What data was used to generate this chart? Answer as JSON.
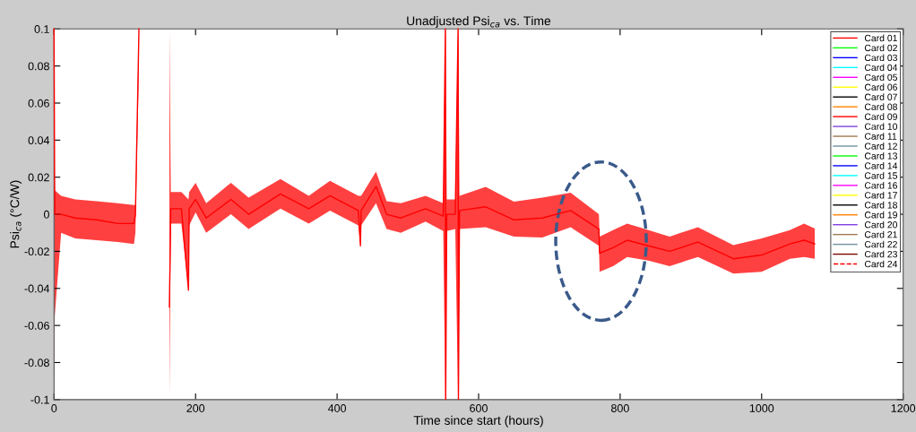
{
  "chart_data": {
    "type": "line",
    "title": "Unadjusted Psi$_{ca}$ vs. Time",
    "xlabel": "Time since start (hours)",
    "ylabel": "Psi$_{ca}$ (°C/W)",
    "x": [
      0,
      1,
      10,
      30,
      60,
      90,
      113,
      115,
      120,
      121,
      162,
      163,
      165,
      180,
      190,
      191,
      200,
      215,
      250,
      275,
      320,
      360,
      390,
      430,
      433,
      434,
      455,
      470,
      490,
      525,
      550,
      553,
      553.5,
      555,
      567,
      571,
      571.5,
      573,
      610,
      650,
      690,
      730,
      770,
      771,
      790,
      810,
      840,
      870,
      910,
      960,
      1000,
      1040,
      1060,
      1075
    ],
    "series": [
      {
        "name": "Card 01",
        "color": "#ff0000",
        "values": [
          0.1,
          0,
          0.0,
          -0.002,
          -0.003,
          -0.005,
          -0.005,
          0.0,
          0.1,
          null,
          null,
          -0.05,
          0.003,
          0.003,
          -0.041,
          0.003,
          0.008,
          -0.002,
          0.008,
          0.0,
          0.011,
          0.003,
          0.01,
          0.002,
          -0.017,
          0.002,
          0.015,
          0.0,
          -0.002,
          0.003,
          -0.001,
          0.1,
          -0.1,
          0.0,
          0.0,
          0.1,
          -0.1,
          0.002,
          0.004,
          -0.003,
          -0.002,
          0.002,
          -0.008,
          -0.021,
          -0.018,
          -0.014,
          -0.017,
          -0.02,
          -0.015,
          -0.024,
          -0.022,
          -0.016,
          -0.014,
          -0.016
        ],
        "lower": [
          -0.1,
          -0.055,
          -0.01,
          -0.013,
          -0.014,
          -0.015,
          -0.016,
          -0.01,
          0.08,
          null,
          null,
          -0.1,
          -0.005,
          -0.005,
          -0.041,
          -0.006,
          0.001,
          -0.01,
          0.0,
          -0.008,
          0.003,
          -0.005,
          0.002,
          -0.006,
          -0.017,
          -0.006,
          0.006,
          -0.008,
          -0.01,
          -0.004,
          -0.009,
          -0.1,
          -0.1,
          -0.009,
          -0.008,
          -0.1,
          -0.1,
          -0.008,
          -0.007,
          -0.012,
          -0.0125,
          -0.007,
          -0.017,
          -0.031,
          -0.028,
          -0.023,
          -0.025,
          -0.028,
          -0.023,
          -0.032,
          -0.031,
          -0.024,
          -0.023,
          -0.024
        ],
        "upper": [
          0.1,
          0.013,
          0.01,
          0.008,
          0.007,
          0.006,
          0.005,
          0.005,
          0.1,
          null,
          null,
          0.1,
          0.012,
          0.012,
          0.008,
          0.012,
          0.017,
          0.006,
          0.017,
          0.009,
          0.019,
          0.01,
          0.018,
          0.01,
          0.01,
          0.01,
          0.023,
          0.007,
          0.006,
          0.01,
          0.006,
          0.1,
          0.1,
          0.008,
          0.008,
          0.1,
          0.1,
          0.01,
          0.0148,
          0.0068,
          0.009,
          0.0116,
          0.0,
          -0.012,
          -0.0085,
          -0.005,
          -0.0085,
          -0.012,
          -0.007,
          -0.0166,
          -0.013,
          -0.0085,
          -0.005,
          -0.0077
        ]
      },
      {
        "name": "Card 02",
        "color": "#00ff00",
        "values": [
          null,
          null,
          null,
          null,
          null,
          null,
          null,
          null,
          null,
          null,
          null,
          null,
          null,
          null,
          null,
          null,
          null,
          null,
          null,
          null,
          null,
          null,
          null,
          null,
          null,
          null,
          null,
          null,
          null,
          null,
          null,
          null,
          null,
          null,
          null,
          null,
          null,
          null,
          null,
          null,
          null,
          null,
          null,
          null,
          null,
          null,
          null,
          null,
          null,
          null,
          null,
          null,
          null,
          null
        ]
      },
      {
        "name": "Card 03",
        "color": "#0000ff",
        "values": [
          null,
          null,
          null,
          null,
          null,
          null,
          null,
          null,
          null,
          null,
          null,
          null,
          null,
          null,
          null,
          null,
          null,
          null,
          null,
          null,
          null,
          null,
          null,
          null,
          null,
          null,
          null,
          null,
          null,
          null,
          null,
          null,
          null,
          null,
          null,
          null,
          null,
          null,
          null,
          null,
          null,
          null,
          null,
          null,
          null,
          null,
          null,
          null,
          null,
          null,
          null,
          null,
          null,
          null
        ]
      },
      {
        "name": "Card 04",
        "color": "#00ffff",
        "values": [
          null,
          null,
          null,
          null,
          null,
          null,
          null,
          null,
          null,
          null,
          null,
          null,
          null,
          null,
          null,
          null,
          null,
          null,
          null,
          null,
          null,
          null,
          null,
          null,
          null,
          null,
          null,
          null,
          null,
          null,
          null,
          null,
          null,
          null,
          null,
          null,
          null,
          null,
          null,
          null,
          null,
          null,
          null,
          null,
          null,
          null,
          null,
          null,
          null,
          null,
          null,
          null,
          null,
          null
        ]
      },
      {
        "name": "Card 05",
        "color": "#ff00ff",
        "values": [
          null,
          null,
          null,
          null,
          null,
          null,
          null,
          null,
          null,
          null,
          null,
          null,
          null,
          null,
          null,
          null,
          null,
          null,
          null,
          null,
          null,
          null,
          null,
          null,
          null,
          null,
          null,
          null,
          null,
          null,
          null,
          null,
          null,
          null,
          null,
          null,
          null,
          null,
          null,
          null,
          null,
          null,
          null,
          null,
          null,
          null,
          null,
          null,
          null,
          null,
          null,
          null,
          null,
          null
        ]
      },
      {
        "name": "Card 06",
        "color": "#ffff00",
        "values": [
          null,
          null,
          null,
          null,
          null,
          null,
          null,
          null,
          null,
          null,
          null,
          null,
          null,
          null,
          null,
          null,
          null,
          null,
          null,
          null,
          null,
          null,
          null,
          null,
          null,
          null,
          null,
          null,
          null,
          null,
          null,
          null,
          null,
          null,
          null,
          null,
          null,
          null,
          null,
          null,
          null,
          null,
          null,
          null,
          null,
          null,
          null,
          null,
          null,
          null,
          null,
          null,
          null,
          null
        ]
      },
      {
        "name": "Card 07",
        "color": "#000000",
        "values": [
          null,
          null,
          null,
          null,
          null,
          null,
          null,
          null,
          null,
          null,
          null,
          null,
          null,
          null,
          null,
          null,
          null,
          null,
          null,
          null,
          null,
          null,
          null,
          null,
          null,
          null,
          null,
          null,
          null,
          null,
          null,
          null,
          null,
          null,
          null,
          null,
          null,
          null,
          null,
          null,
          null,
          null,
          null,
          null,
          null,
          null,
          null,
          null,
          null,
          null,
          null,
          null,
          null,
          null
        ]
      },
      {
        "name": "Card 08",
        "color": "#ff8000",
        "values": [
          null,
          null,
          null,
          null,
          null,
          null,
          null,
          null,
          null,
          null,
          null,
          null,
          null,
          null,
          null,
          null,
          null,
          null,
          null,
          null,
          null,
          null,
          null,
          null,
          null,
          null,
          null,
          null,
          null,
          null,
          null,
          null,
          null,
          null,
          null,
          null,
          null,
          null,
          null,
          null,
          null,
          null,
          null,
          null,
          null,
          null,
          null,
          null,
          null,
          null,
          null,
          null,
          null,
          null
        ]
      },
      {
        "name": "Card 09",
        "color": "#ff0000",
        "values": [
          null,
          null,
          null,
          null,
          null,
          null,
          null,
          null,
          null,
          null,
          null,
          null,
          null,
          null,
          null,
          null,
          null,
          null,
          null,
          null,
          null,
          null,
          null,
          null,
          null,
          null,
          null,
          null,
          null,
          null,
          null,
          null,
          null,
          null,
          null,
          null,
          null,
          null,
          null,
          null,
          null,
          null,
          null,
          null,
          null,
          null,
          null,
          null,
          null,
          null,
          null,
          null,
          null,
          null
        ]
      },
      {
        "name": "Card 10",
        "color": "#8040e0",
        "values": [
          null,
          null,
          null,
          null,
          null,
          null,
          null,
          null,
          null,
          null,
          null,
          null,
          null,
          null,
          null,
          null,
          null,
          null,
          null,
          null,
          null,
          null,
          null,
          null,
          null,
          null,
          null,
          null,
          null,
          null,
          null,
          null,
          null,
          null,
          null,
          null,
          null,
          null,
          null,
          null,
          null,
          null,
          null,
          null,
          null,
          null,
          null,
          null,
          null,
          null,
          null,
          null,
          null,
          null
        ]
      },
      {
        "name": "Card 11",
        "color": "#a07850",
        "values": [
          null,
          null,
          null,
          null,
          null,
          null,
          null,
          null,
          null,
          null,
          null,
          null,
          null,
          null,
          null,
          null,
          null,
          null,
          null,
          null,
          null,
          null,
          null,
          null,
          null,
          null,
          null,
          null,
          null,
          null,
          null,
          null,
          null,
          null,
          null,
          null,
          null,
          null,
          null,
          null,
          null,
          null,
          null,
          null,
          null,
          null,
          null,
          null,
          null,
          null,
          null,
          null,
          null,
          null
        ]
      },
      {
        "name": "Card 12",
        "color": "#7090a0",
        "values": [
          null,
          null,
          null,
          null,
          null,
          null,
          null,
          null,
          null,
          null,
          null,
          null,
          null,
          null,
          null,
          null,
          null,
          null,
          null,
          null,
          null,
          null,
          null,
          null,
          null,
          null,
          null,
          null,
          null,
          null,
          null,
          null,
          null,
          null,
          null,
          null,
          null,
          null,
          null,
          null,
          null,
          null,
          null,
          null,
          null,
          null,
          null,
          null,
          null,
          null,
          null,
          null,
          null,
          null
        ]
      },
      {
        "name": "Card 13",
        "color": "#00ff00",
        "values": [
          null,
          null,
          null,
          null,
          null,
          null,
          null,
          null,
          null,
          null,
          null,
          null,
          null,
          null,
          null,
          null,
          null,
          null,
          null,
          null,
          null,
          null,
          null,
          null,
          null,
          null,
          null,
          null,
          null,
          null,
          null,
          null,
          null,
          null,
          null,
          null,
          null,
          null,
          null,
          null,
          null,
          null,
          null,
          null,
          null,
          null,
          null,
          null,
          null,
          null,
          null,
          null,
          null,
          null
        ]
      },
      {
        "name": "Card 14",
        "color": "#0000ff",
        "values": [
          null,
          null,
          null,
          null,
          null,
          null,
          null,
          null,
          null,
          null,
          null,
          null,
          null,
          null,
          null,
          null,
          null,
          null,
          null,
          null,
          null,
          null,
          null,
          null,
          null,
          null,
          null,
          null,
          null,
          null,
          null,
          null,
          null,
          null,
          null,
          null,
          null,
          null,
          null,
          null,
          null,
          null,
          null,
          null,
          null,
          null,
          null,
          null,
          null,
          null,
          null,
          null,
          null,
          null
        ]
      },
      {
        "name": "Card 15",
        "color": "#00ffff",
        "values": [
          null,
          null,
          null,
          null,
          null,
          null,
          null,
          null,
          null,
          null,
          null,
          null,
          null,
          null,
          null,
          null,
          null,
          null,
          null,
          null,
          null,
          null,
          null,
          null,
          null,
          null,
          null,
          null,
          null,
          null,
          null,
          null,
          null,
          null,
          null,
          null,
          null,
          null,
          null,
          null,
          null,
          null,
          null,
          null,
          null,
          null,
          null,
          null,
          null,
          null,
          null,
          null,
          null,
          null
        ]
      },
      {
        "name": "Card 16",
        "color": "#ff00ff",
        "values": [
          null,
          null,
          null,
          null,
          null,
          null,
          null,
          null,
          null,
          null,
          null,
          null,
          null,
          null,
          null,
          null,
          null,
          null,
          null,
          null,
          null,
          null,
          null,
          null,
          null,
          null,
          null,
          null,
          null,
          null,
          null,
          null,
          null,
          null,
          null,
          null,
          null,
          null,
          null,
          null,
          null,
          null,
          null,
          null,
          null,
          null,
          null,
          null,
          null,
          null,
          null,
          null,
          null,
          null
        ]
      },
      {
        "name": "Card 17",
        "color": "#ffff00",
        "values": [
          null,
          null,
          null,
          null,
          null,
          null,
          null,
          null,
          null,
          null,
          null,
          null,
          null,
          null,
          null,
          null,
          null,
          null,
          null,
          null,
          null,
          null,
          null,
          null,
          null,
          null,
          null,
          null,
          null,
          null,
          null,
          null,
          null,
          null,
          null,
          null,
          null,
          null,
          null,
          null,
          null,
          null,
          null,
          null,
          null,
          null,
          null,
          null,
          null,
          null,
          null,
          null,
          null,
          null
        ]
      },
      {
        "name": "Card 18",
        "color": "#000000",
        "values": [
          null,
          null,
          null,
          null,
          null,
          null,
          null,
          null,
          null,
          null,
          null,
          null,
          null,
          null,
          null,
          null,
          null,
          null,
          null,
          null,
          null,
          null,
          null,
          null,
          null,
          null,
          null,
          null,
          null,
          null,
          null,
          null,
          null,
          null,
          null,
          null,
          null,
          null,
          null,
          null,
          null,
          null,
          null,
          null,
          null,
          null,
          null,
          null,
          null,
          null,
          null,
          null,
          null,
          null
        ]
      },
      {
        "name": "Card 19",
        "color": "#ff8000",
        "values": [
          null,
          null,
          null,
          null,
          null,
          null,
          null,
          null,
          null,
          null,
          null,
          null,
          null,
          null,
          null,
          null,
          null,
          null,
          null,
          null,
          null,
          null,
          null,
          null,
          null,
          null,
          null,
          null,
          null,
          null,
          null,
          null,
          null,
          null,
          null,
          null,
          null,
          null,
          null,
          null,
          null,
          null,
          null,
          null,
          null,
          null,
          null,
          null,
          null,
          null,
          null,
          null,
          null,
          null
        ]
      },
      {
        "name": "Card 20",
        "color": "#8040e0",
        "values": [
          null,
          null,
          null,
          null,
          null,
          null,
          null,
          null,
          null,
          null,
          null,
          null,
          null,
          null,
          null,
          null,
          null,
          null,
          null,
          null,
          null,
          null,
          null,
          null,
          null,
          null,
          null,
          null,
          null,
          null,
          null,
          null,
          null,
          null,
          null,
          null,
          null,
          null,
          null,
          null,
          null,
          null,
          null,
          null,
          null,
          null,
          null,
          null,
          null,
          null,
          null,
          null,
          null,
          null
        ]
      },
      {
        "name": "Card 21",
        "color": "#a07850",
        "values": [
          null,
          null,
          null,
          null,
          null,
          null,
          null,
          null,
          null,
          null,
          null,
          null,
          null,
          null,
          null,
          null,
          null,
          null,
          null,
          null,
          null,
          null,
          null,
          null,
          null,
          null,
          null,
          null,
          null,
          null,
          null,
          null,
          null,
          null,
          null,
          null,
          null,
          null,
          null,
          null,
          null,
          null,
          null,
          null,
          null,
          null,
          null,
          null,
          null,
          null,
          null,
          null,
          null,
          null
        ]
      },
      {
        "name": "Card 22",
        "color": "#7090a0",
        "values": [
          null,
          null,
          null,
          null,
          null,
          null,
          null,
          null,
          null,
          null,
          null,
          null,
          null,
          null,
          null,
          null,
          null,
          null,
          null,
          null,
          null,
          null,
          null,
          null,
          null,
          null,
          null,
          null,
          null,
          null,
          null,
          null,
          null,
          null,
          null,
          null,
          null,
          null,
          null,
          null,
          null,
          null,
          null,
          null,
          null,
          null,
          null,
          null,
          null,
          null,
          null,
          null,
          null,
          null
        ]
      },
      {
        "name": "Card 23",
        "color": "#800000",
        "values": [
          null,
          null,
          null,
          null,
          null,
          null,
          null,
          null,
          null,
          null,
          null,
          null,
          null,
          null,
          null,
          null,
          null,
          null,
          null,
          null,
          null,
          null,
          null,
          null,
          null,
          null,
          null,
          null,
          null,
          null,
          null,
          null,
          null,
          null,
          null,
          null,
          null,
          null,
          null,
          null,
          null,
          null,
          null,
          null,
          null,
          null,
          null,
          null,
          null,
          null,
          null,
          null,
          null,
          null
        ]
      },
      {
        "name": "Card 24",
        "color": "#ff0000",
        "line_style": "dashed",
        "values": [
          null,
          null,
          null,
          null,
          null,
          null,
          null,
          null,
          null,
          null,
          null,
          null,
          null,
          null,
          null,
          null,
          null,
          null,
          null,
          null,
          null,
          null,
          null,
          null,
          null,
          null,
          null,
          null,
          null,
          null,
          null,
          null,
          null,
          null,
          null,
          null,
          null,
          null,
          null,
          null,
          null,
          null,
          null,
          null,
          null,
          null,
          null,
          null,
          null,
          null,
          null,
          null,
          null,
          null
        ]
      }
    ],
    "xlim": [
      0,
      1200
    ],
    "xticks": [
      0,
      200,
      400,
      600,
      800,
      1000,
      1200
    ],
    "ylim": [
      -0.1,
      0.1
    ],
    "yticks": [
      -0.1,
      -0.08,
      -0.06,
      -0.04,
      -0.02,
      0,
      0.02,
      0.04,
      0.06,
      0.08,
      0.1
    ],
    "grid": false,
    "legend": "top right",
    "line_style": "solid",
    "marker": "none"
  }
}
